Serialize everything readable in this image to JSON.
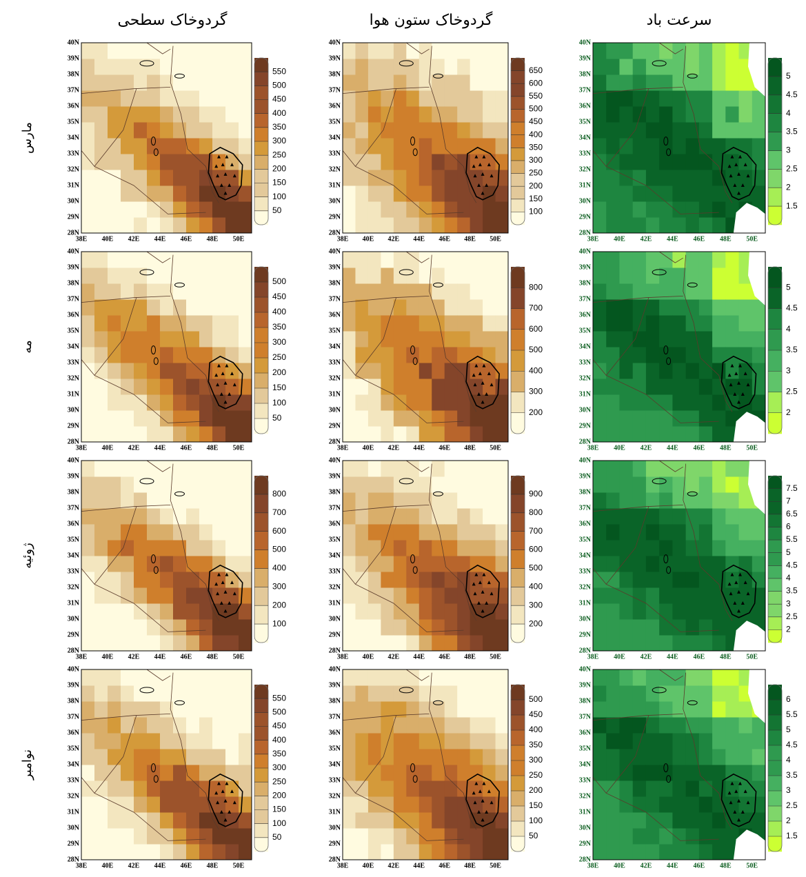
{
  "columns": [
    "گردوخاک سطحی",
    "گردوخاک ستون هوا",
    "سرعت باد"
  ],
  "lat_ticks": [
    "28N",
    "29N",
    "30N",
    "31N",
    "32N",
    "33N",
    "34N",
    "35N",
    "36N",
    "37N",
    "38N",
    "39N",
    "40N"
  ],
  "lon_ticks": [
    "38E",
    "40E",
    "42E",
    "44E",
    "46E",
    "48E",
    "50E"
  ],
  "palettes": {
    "dust": [
      "#fffbe0",
      "#f3e6bf",
      "#e3c99a",
      "#d9ae6a",
      "#d49a3a",
      "#cf7f2c",
      "#b8652c",
      "#9c532b",
      "#84452a",
      "#6e3a20"
    ],
    "wind": [
      "#ccff33",
      "#a6ee55",
      "#7fd66a",
      "#5fc46a",
      "#45b060",
      "#2f9a4f",
      "#1e8640",
      "#137533",
      "#0a6428",
      "#04561f"
    ]
  },
  "rows": [
    {
      "label": "مارس",
      "panels": [
        {
          "palette": "dust",
          "ticks": [
            50,
            100,
            150,
            200,
            250,
            300,
            350,
            400,
            450,
            500,
            550
          ]
        },
        {
          "palette": "dust",
          "ticks": [
            100,
            150,
            200,
            250,
            300,
            350,
            400,
            450,
            500,
            550,
            600,
            650
          ]
        },
        {
          "palette": "wind",
          "ticks": [
            1.5,
            2,
            2.5,
            3,
            3.5,
            4,
            4.5,
            5
          ]
        }
      ]
    },
    {
      "label": "مه",
      "panels": [
        {
          "palette": "dust",
          "ticks": [
            50,
            100,
            150,
            200,
            250,
            300,
            350,
            400,
            450,
            500
          ]
        },
        {
          "palette": "dust",
          "ticks": [
            200,
            300,
            400,
            500,
            600,
            700,
            800
          ]
        },
        {
          "palette": "wind",
          "ticks": [
            2,
            2.5,
            3,
            3.5,
            4,
            4.5,
            5
          ]
        }
      ]
    },
    {
      "label": "ژوئیه",
      "panels": [
        {
          "palette": "dust",
          "ticks": [
            100,
            200,
            300,
            400,
            500,
            600,
            700,
            800
          ]
        },
        {
          "palette": "dust",
          "ticks": [
            200,
            300,
            400,
            500,
            600,
            700,
            800,
            900
          ]
        },
        {
          "palette": "wind",
          "ticks": [
            2,
            2.5,
            3,
            3.5,
            4,
            4.5,
            5,
            5.5,
            6,
            6.5,
            7,
            7.5
          ]
        }
      ]
    },
    {
      "label": "نوامبر",
      "panels": [
        {
          "palette": "dust",
          "ticks": [
            50,
            100,
            150,
            200,
            250,
            300,
            350,
            400,
            450,
            500,
            550
          ]
        },
        {
          "palette": "dust",
          "ticks": [
            50,
            100,
            150,
            200,
            250,
            300,
            350,
            400,
            450,
            500
          ]
        },
        {
          "palette": "wind",
          "ticks": [
            1.5,
            2,
            2.5,
            3,
            3.5,
            4,
            4.5,
            5,
            5.5,
            6
          ]
        }
      ]
    }
  ]
}
